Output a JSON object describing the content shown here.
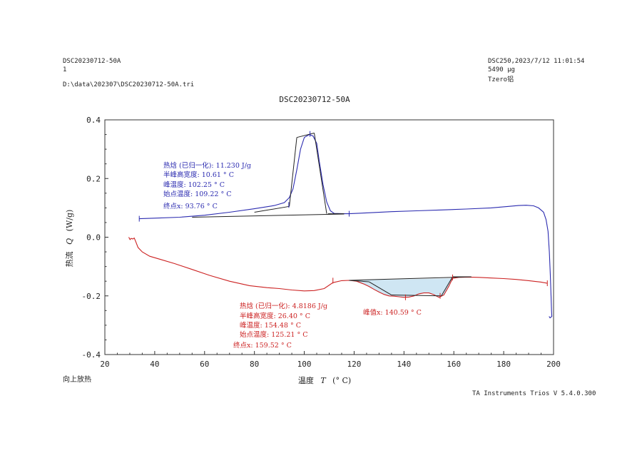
{
  "header": {
    "left_line1": "DSC20230712-50A",
    "left_line2": "1",
    "left_path": "D:\\data\\202307\\DSC20230712-50A.tri",
    "right_line1": "DSC250,2023/7/12 11:01:54",
    "right_line2": "5490 μg",
    "right_line3": "Tzero铝"
  },
  "footer": {
    "exo_label": "向上放热",
    "software": "TA Instruments Trios V 5.4.0.300"
  },
  "chart_data": {
    "type": "line",
    "title": "DSC20230712-50A",
    "xlabel_prefix": "温度",
    "xlabel_symbol": "T",
    "xlabel_unit": "(° C)",
    "ylabel_prefix": "热流",
    "ylabel_symbol": "Q",
    "ylabel_unit": "(W/g)",
    "xlim": [
      20,
      200
    ],
    "ylim": [
      -0.4,
      0.4
    ],
    "xticks": [
      20,
      40,
      60,
      80,
      100,
      120,
      140,
      160,
      180,
      200
    ],
    "yticks": [
      -0.4,
      -0.2,
      0.0,
      0.2,
      0.4
    ],
    "grid": false,
    "series": [
      {
        "color": "#2b2bb0",
        "x": [
          33.8,
          40,
          50,
          60,
          70,
          80,
          88,
          92,
          94,
          95.5,
          97,
          98.5,
          100,
          102,
          103.5,
          105,
          106,
          107.5,
          109,
          110.5,
          112,
          116,
          118,
          125,
          135,
          145,
          155,
          165,
          175,
          182,
          186,
          189,
          192,
          194,
          196,
          197,
          197.8,
          198.3,
          198.7,
          199,
          199.2,
          199.3,
          198.6,
          198.2
        ],
        "y": [
          0.063,
          0.065,
          0.068,
          0.075,
          0.085,
          0.097,
          0.108,
          0.118,
          0.135,
          0.165,
          0.23,
          0.3,
          0.34,
          0.35,
          0.345,
          0.32,
          0.26,
          0.18,
          0.12,
          0.09,
          0.081,
          0.08,
          0.08,
          0.083,
          0.087,
          0.09,
          0.093,
          0.096,
          0.1,
          0.105,
          0.108,
          0.109,
          0.107,
          0.1,
          0.085,
          0.06,
          0.02,
          -0.05,
          -0.13,
          -0.2,
          -0.25,
          -0.27,
          -0.275,
          -0.27
        ]
      },
      {
        "color": "#cc2222",
        "x": [
          29.6,
          30.1,
          30.6,
          31.2,
          31.8,
          32.4,
          33.3,
          35,
          38,
          42,
          48,
          55,
          62,
          70,
          78,
          85,
          90,
          95,
          100,
          104,
          108,
          111.5,
          115,
          118,
          121,
          124,
          126,
          128,
          130,
          132,
          134,
          136,
          138,
          140,
          142,
          144,
          146,
          148,
          150,
          152,
          154,
          156,
          158,
          159.5,
          162,
          166,
          170,
          175,
          180,
          185,
          190,
          195,
          197.5
        ],
        "y": [
          0.0,
          -0.008,
          -0.004,
          -0.006,
          -0.003,
          -0.015,
          -0.035,
          -0.05,
          -0.065,
          -0.075,
          -0.09,
          -0.11,
          -0.13,
          -0.15,
          -0.165,
          -0.172,
          -0.175,
          -0.18,
          -0.183,
          -0.182,
          -0.175,
          -0.155,
          -0.148,
          -0.147,
          -0.15,
          -0.16,
          -0.168,
          -0.178,
          -0.187,
          -0.195,
          -0.2,
          -0.201,
          -0.203,
          -0.205,
          -0.204,
          -0.2,
          -0.193,
          -0.19,
          -0.19,
          -0.196,
          -0.205,
          -0.197,
          -0.167,
          -0.14,
          -0.137,
          -0.136,
          -0.137,
          -0.139,
          -0.141,
          -0.144,
          -0.148,
          -0.153,
          -0.157
        ]
      }
    ],
    "blue_annotations": [
      "热焓 (已归一化): 11.230 J/g",
      "半峰高宽度: 10.61 ° C",
      "峰温度: 102.25 ° C",
      "始点温度: 109.22 ° C",
      "终点x: 93.76 ° C"
    ],
    "red_annotations": [
      "热焓 (已归一化): 4.8186 J/g",
      "半峰高宽度: 26.40 ° C",
      "峰温度: 154.48 ° C",
      "始点温度: 125.21 ° C",
      "终点x: 159.52 ° C"
    ],
    "red_peak_label": "峰值x: 140.59 ° C",
    "colors": {
      "blue": "#2b2bb0",
      "red": "#cc2222",
      "fill": "#cfe6f3"
    }
  }
}
